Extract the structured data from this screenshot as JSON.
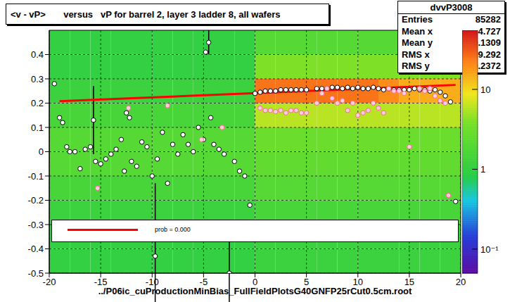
{
  "chart_data": {
    "type": "scatter",
    "title": "<v - vP>       versus   vP for barrel 2, layer 3 ladder 8, all wafers",
    "x_label": "../P06ic_cuProductionMinBias_FullFieldPlotsG40GNFP25rCut0.5cm.root",
    "xlim": [
      -20,
      20
    ],
    "xticks": [
      -20,
      -15,
      -10,
      -5,
      0,
      5,
      10,
      15,
      20
    ],
    "ylim": [
      -0.5,
      0.5
    ],
    "yticks": [
      -0.5,
      -0.4,
      -0.3,
      -0.2,
      -0.1,
      0,
      0.1,
      0.2,
      0.3,
      0.4
    ],
    "grid": true,
    "legend": "bottom",
    "stats": {
      "name": "dvvP3008",
      "rows": [
        {
          "label": "Entries",
          "value": 85282
        },
        {
          "label": "Mean x",
          "value": 4.727
        },
        {
          "label": "Mean y",
          "value": 0.1309
        },
        {
          "label": "RMS x",
          "value": 9.292
        },
        {
          "label": "RMS y",
          "value": 0.2372
        }
      ]
    },
    "heatmap": {
      "x_bins": [
        -20,
        -18,
        -16,
        -14,
        -12,
        -10,
        -8,
        -6,
        -4,
        -2,
        0,
        2,
        4,
        6,
        8,
        10,
        12,
        14,
        16,
        18,
        20
      ],
      "y_bins": [
        -0.5,
        -0.4,
        -0.3,
        -0.2,
        -0.1,
        0,
        0.1,
        0.2,
        0.3,
        0.4,
        0.5
      ],
      "counts": [
        [
          1,
          1,
          1,
          1,
          1,
          1,
          1,
          1,
          1,
          1,
          1.2,
          1.2,
          1.2,
          1.2,
          1.2,
          1.2,
          1.2,
          1.2,
          1.2,
          1.2
        ],
        [
          1,
          1,
          1,
          1,
          1,
          1,
          1,
          1,
          1,
          1,
          1.2,
          1.2,
          1.2,
          1.2,
          1.2,
          1.2,
          1.2,
          1.2,
          1.2,
          1.2
        ],
        [
          1.2,
          1.2,
          1.2,
          1.2,
          1.2,
          1.2,
          1.2,
          1.2,
          1.2,
          1.2,
          1.5,
          1.5,
          1.5,
          1.5,
          1.5,
          1.5,
          1.5,
          1.5,
          1.5,
          1.5
        ],
        [
          1.5,
          1.5,
          1.5,
          1.5,
          1.5,
          1.5,
          1.5,
          1.5,
          1.5,
          1.5,
          2,
          2,
          2,
          2,
          2,
          2,
          2,
          2,
          2,
          2
        ],
        [
          2,
          2,
          2,
          2,
          2,
          2,
          2,
          2,
          2,
          2,
          2.5,
          2.5,
          2.5,
          2.5,
          2.5,
          2.5,
          2.5,
          2.5,
          2.5,
          2.5
        ],
        [
          2,
          2,
          2,
          2,
          2,
          2,
          2,
          2,
          2,
          2,
          3,
          3,
          3,
          3,
          3,
          3,
          3,
          3,
          3,
          3
        ],
        [
          1.5,
          1.5,
          1.5,
          1.5,
          1.5,
          1.5,
          1.5,
          1.5,
          1.5,
          1.5,
          6,
          6,
          6,
          6,
          6,
          6,
          6,
          6,
          6,
          6
        ],
        [
          1.2,
          1.2,
          1.2,
          1.2,
          1.2,
          1.2,
          1.2,
          1.2,
          1.2,
          1.2,
          25,
          25,
          25,
          25,
          25,
          25,
          20,
          15,
          15,
          15
        ],
        [
          1,
          1,
          1,
          1,
          1,
          1,
          1,
          1,
          1,
          1,
          4,
          4,
          4,
          4,
          4,
          4,
          4,
          4,
          4,
          4
        ],
        [
          1,
          1,
          1,
          1,
          1,
          1,
          1,
          1,
          1,
          1,
          2,
          2,
          2,
          2,
          2,
          2,
          2,
          2,
          2,
          2
        ]
      ],
      "zlim": [
        0.05,
        55
      ],
      "zticks": [
        {
          "value": 0.1,
          "label": "10⁻¹"
        },
        1,
        10
      ]
    },
    "series": [
      {
        "type": "scatter",
        "color": "#000000",
        "marker": "open_circle",
        "x": [
          -19.5,
          -19,
          -18.7,
          -18.3,
          -18,
          -17.5,
          -17,
          -16.5,
          -16,
          -15.7,
          -15.5,
          -15,
          -14.5,
          -14,
          -13.5,
          -13,
          -12.7,
          -12.5,
          -12.2,
          -12,
          -11.5,
          -11,
          -10.5,
          -10,
          -9.7,
          -9.5,
          -9,
          -8.5,
          -8,
          -7.5,
          -7,
          -6.5,
          -6,
          -5.5,
          -5,
          -4.8,
          -4.5,
          -4.3,
          -4,
          -3.5,
          -3,
          -2.5,
          -2,
          -1.5,
          -1,
          -0.5,
          0,
          0.5,
          1,
          1.5,
          2,
          2.5,
          3,
          3.5,
          4,
          4.5,
          5,
          6,
          6.5,
          7,
          7.5,
          8,
          8.5,
          9,
          9.5,
          10,
          10.5,
          11,
          11.5,
          12,
          12.5,
          13,
          13.5,
          14,
          14.5,
          15,
          15.5,
          16,
          16.5,
          17,
          17.5,
          18,
          18.5,
          19,
          19.5
        ],
        "values": [
          0.28,
          0.14,
          0.12,
          0.02,
          0,
          0,
          -0.07,
          0.01,
          0.02,
          0.13,
          -0.04,
          -0.05,
          -0.03,
          -0.01,
          0.01,
          0.05,
          -0.08,
          0.16,
          0.14,
          -0.04,
          -0.06,
          0.04,
          0.02,
          -0.1,
          -0.43,
          -0.03,
          0.08,
          -0.13,
          0.03,
          -0.01,
          0.07,
          0.03,
          0,
          0.1,
          0.05,
          0.41,
          0.45,
          0.14,
          0.03,
          0.01,
          -0.01,
          -0.5,
          -0.04,
          -0.08,
          -0.1,
          -0.22,
          0.24,
          0.245,
          0.25,
          0.25,
          0.25,
          0.255,
          0.255,
          0.255,
          0.255,
          0.255,
          0.255,
          0.26,
          0.26,
          0.26,
          0.265,
          0.265,
          0.26,
          0.265,
          0.26,
          0.265,
          0.26,
          0.26,
          0.265,
          0.26,
          0.255,
          0.26,
          0.255,
          0.255,
          0.255,
          0.255,
          0.26,
          0.255,
          0.255,
          0.25,
          0.255,
          0.245,
          0.23,
          0.205,
          -0.205
        ],
        "errors": [
          0,
          0,
          0,
          0,
          0,
          0,
          0,
          0,
          0,
          0.14,
          0,
          0,
          0,
          0,
          0,
          0,
          0,
          0,
          0,
          0,
          0,
          0,
          0,
          0,
          0.3,
          0,
          0,
          0,
          0,
          0,
          0,
          0,
          0,
          0,
          0,
          0,
          0.05,
          0,
          0,
          0,
          0,
          0.22,
          0,
          0,
          0,
          0,
          0,
          0,
          0,
          0,
          0,
          0,
          0,
          0,
          0,
          0,
          0,
          0,
          0,
          0,
          0,
          0,
          0,
          0,
          0,
          0,
          0,
          0,
          0,
          0,
          0,
          0,
          0,
          0,
          0,
          0,
          0,
          0,
          0,
          0,
          0,
          0,
          0,
          0,
          0,
          0
        ]
      },
      {
        "type": "scatter",
        "color": "#ff6699",
        "marker": "open_circle",
        "x": [
          -15.3,
          -12.3,
          -8.5,
          -5.2,
          -3.2,
          0.5,
          1,
          1.5,
          2,
          2.5,
          3,
          3.5,
          4,
          4.5,
          5,
          6,
          6.5,
          7,
          7.5,
          8,
          8.5,
          9,
          9.5,
          10,
          10.5,
          11,
          11.5,
          12,
          12.5,
          13,
          13.5,
          14,
          14.5,
          15,
          16,
          16.5,
          17,
          17.5,
          18,
          18.5,
          18.8
        ],
        "values": [
          -0.15,
          0.18,
          0.19,
          0.05,
          0.1,
          0.18,
          0.17,
          0.17,
          0.165,
          0.17,
          0.16,
          0.17,
          0.17,
          0.16,
          0.16,
          0.2,
          0.24,
          0.26,
          0.22,
          0.2,
          0.21,
          0.17,
          0.2,
          0.15,
          0.16,
          0.17,
          0.2,
          0.18,
          0.16,
          0.26,
          0.25,
          0.25,
          0.24,
          0.02,
          0.26,
          0.25,
          0.26,
          0.23,
          0.21,
          0.2,
          -0.18
        ]
      },
      {
        "type": "line",
        "name": "prob = 0.000",
        "color": "#ff0000",
        "line_style": "solid",
        "x": [
          -19,
          19.5
        ],
        "values": [
          0.208,
          0.275
        ]
      }
    ]
  }
}
